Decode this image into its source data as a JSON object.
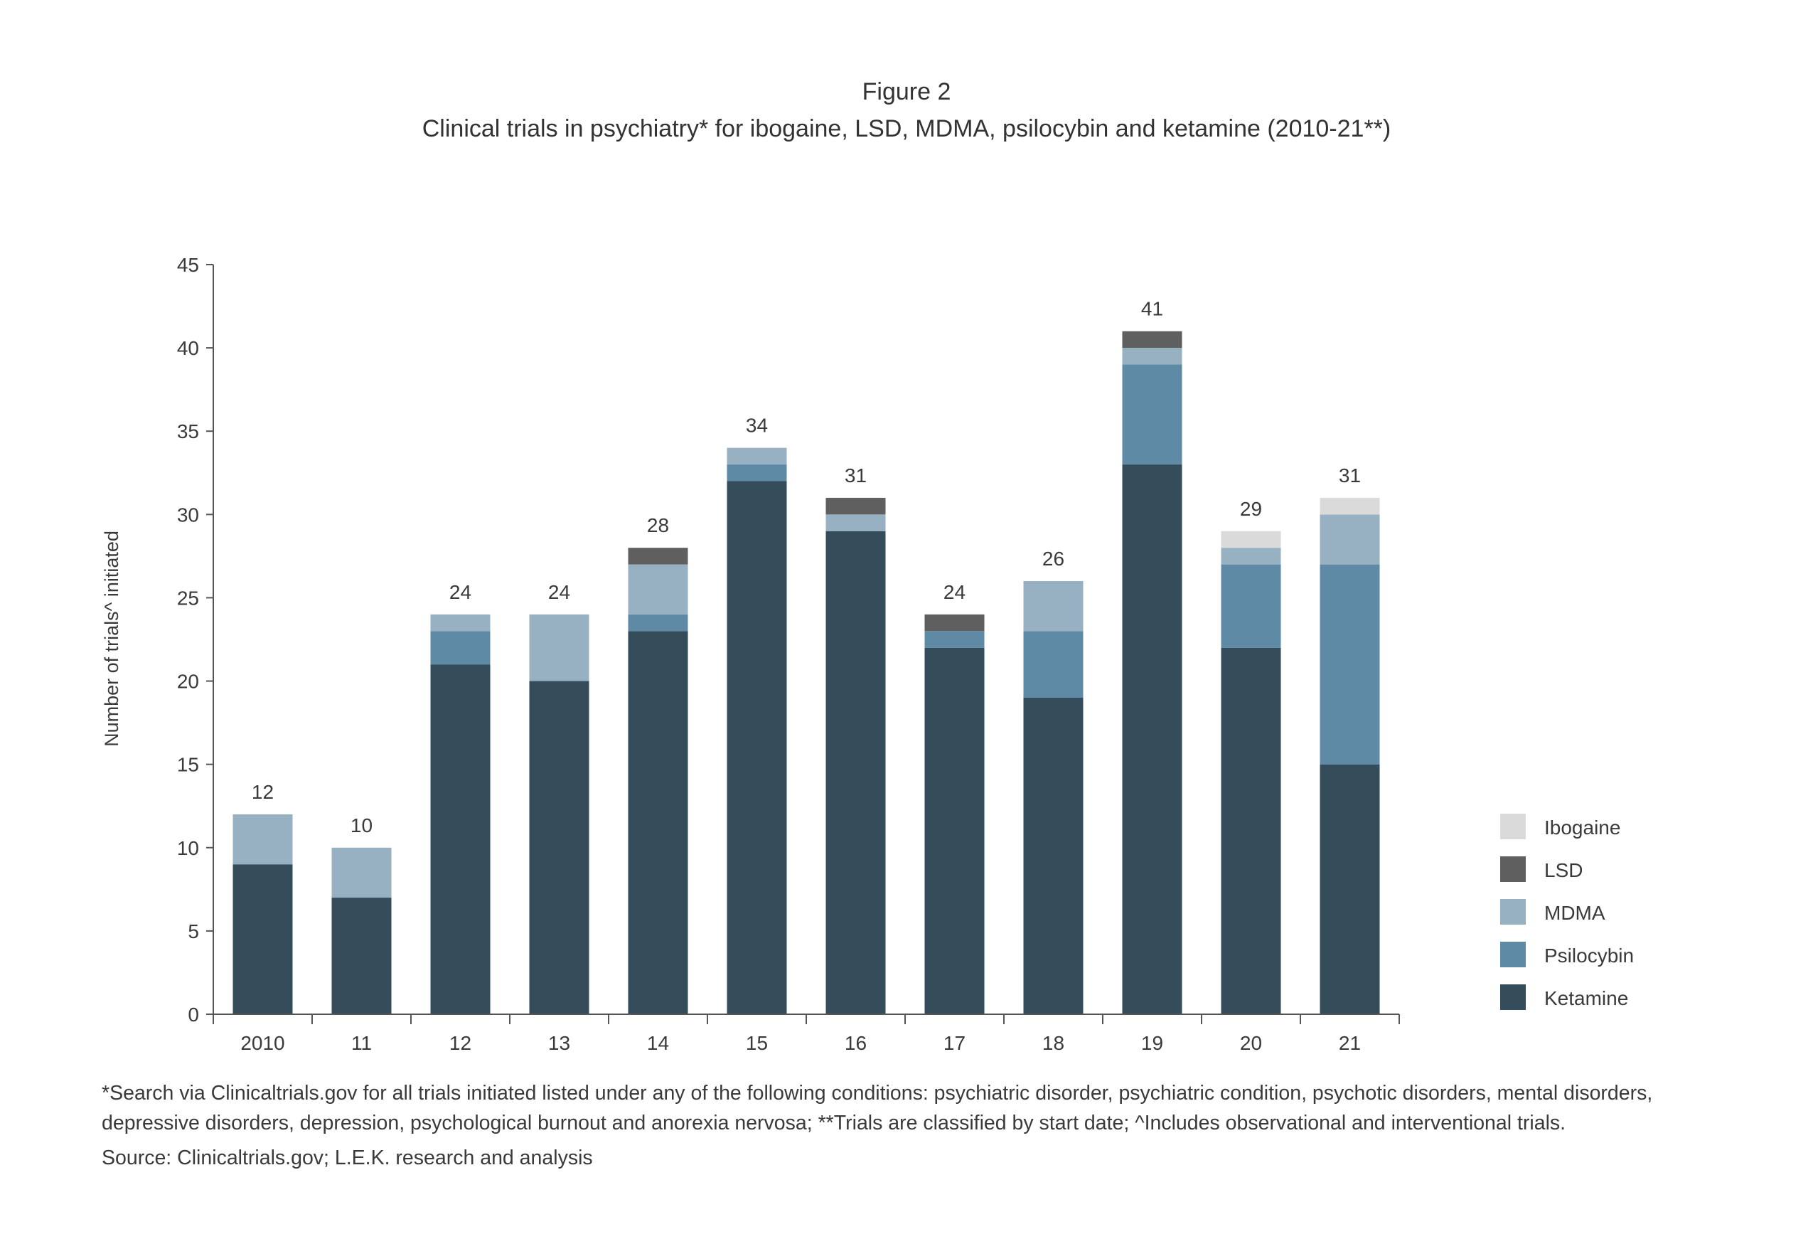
{
  "figure_label": "Figure 2",
  "title": "Clinical trials in psychiatry* for ibogaine, LSD, MDMA, psilocybin and ketamine (2010-21**)",
  "footnote": "*Search via Clinicaltrials.gov for all trials initiated listed under any of the following conditions: psychiatric disorder, psychiatric condition, psychotic disorders, mental disorders, depressive disorders, depression, psychological burnout and anorexia nervosa; **Trials are classified by start date; ^Includes observational and interventional trials.",
  "source": "Source: Clinicaltrials.gov; L.E.K. research and analysis",
  "chart_data": {
    "type": "bar",
    "stacked": true,
    "title": "Clinical trials in psychiatry* for ibogaine, LSD, MDMA, psilocybin and ketamine (2010-21**)",
    "xlabel": "",
    "ylabel": "Number of trials^ initiated",
    "ylim": [
      0,
      45
    ],
    "yticks": [
      0,
      5,
      10,
      15,
      20,
      25,
      30,
      35,
      40,
      45
    ],
    "grid": false,
    "legend_position": "right",
    "categories": [
      "2010",
      "11",
      "12",
      "13",
      "14",
      "15",
      "16",
      "17",
      "18",
      "19",
      "20",
      "21"
    ],
    "totals": [
      12,
      10,
      24,
      24,
      28,
      34,
      31,
      24,
      26,
      41,
      29,
      31
    ],
    "series": [
      {
        "name": "Ketamine",
        "color": "#354d5b",
        "values": [
          9,
          7,
          21,
          20,
          23,
          32,
          29,
          22,
          19,
          33,
          22,
          15
        ]
      },
      {
        "name": "Psilocybin",
        "color": "#5e8aa6",
        "values": [
          0,
          0,
          2,
          0,
          1,
          1,
          0,
          1,
          4,
          6,
          5,
          12
        ]
      },
      {
        "name": "MDMA",
        "color": "#97b1c2",
        "values": [
          3,
          3,
          1,
          4,
          3,
          1,
          1,
          0,
          3,
          1,
          1,
          3
        ]
      },
      {
        "name": "LSD",
        "color": "#5f5f5f",
        "values": [
          0,
          0,
          0,
          0,
          1,
          0,
          1,
          1,
          0,
          1,
          0,
          0
        ]
      },
      {
        "name": "Ibogaine",
        "color": "#dadada",
        "values": [
          0,
          0,
          0,
          0,
          0,
          0,
          0,
          0,
          0,
          0,
          1,
          1
        ]
      }
    ],
    "legend_order": [
      "Ibogaine",
      "LSD",
      "MDMA",
      "Psilocybin",
      "Ketamine"
    ]
  }
}
